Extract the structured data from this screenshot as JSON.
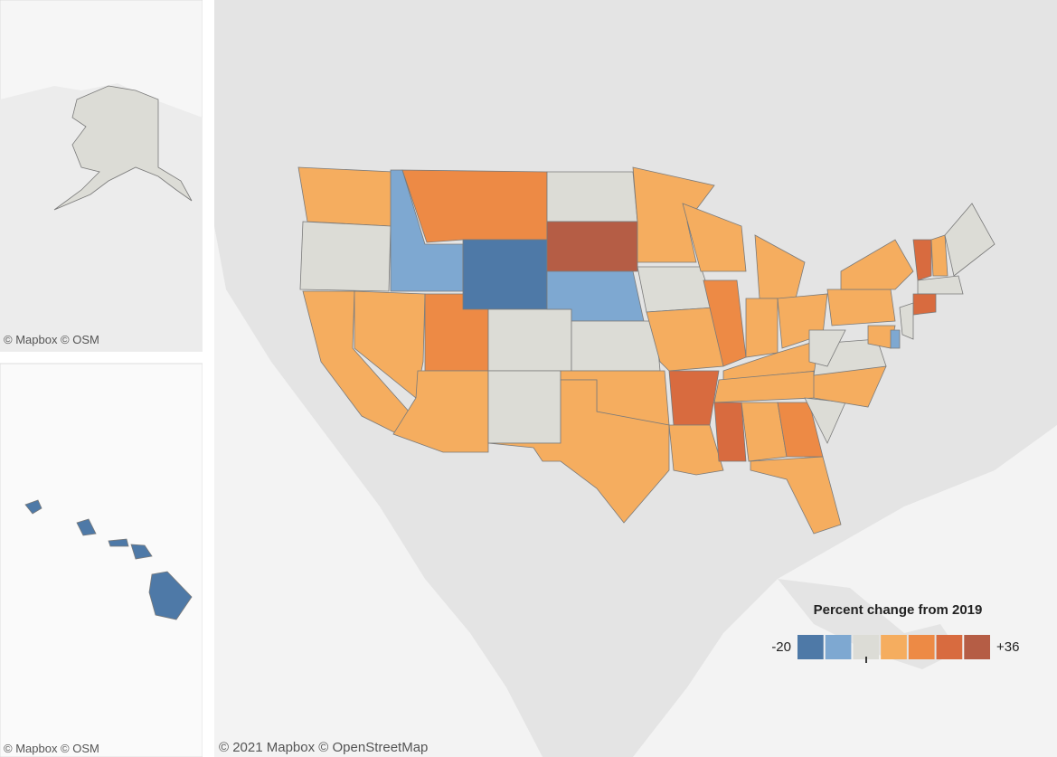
{
  "attributions": {
    "alaska": "© Mapbox  © OSM",
    "hawaii": "© Mapbox  © OSM",
    "main": "© 2021 Mapbox  © OpenStreetMap"
  },
  "legend": {
    "title": "Percent change from 2019",
    "min_label": "-20",
    "max_label": "+36",
    "colors": [
      "#4e79a7",
      "#7ea8d1",
      "#dcdcd6",
      "#f5ad5f",
      "#ed8a45",
      "#d86b3f",
      "#b55d45"
    ]
  }
}
